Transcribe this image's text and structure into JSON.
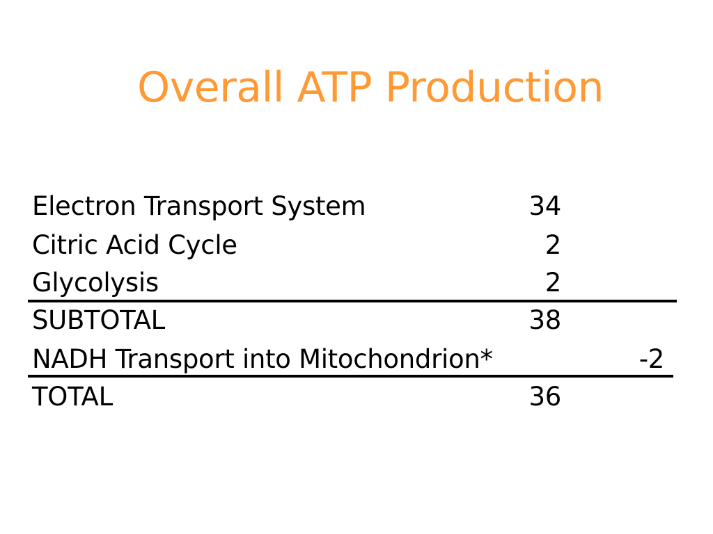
{
  "slide": {
    "title": "Overall ATP Production",
    "accent_color": "#ff9933",
    "rows": [
      {
        "label": "Electron Transport System",
        "value": "34"
      },
      {
        "label": "Citric Acid Cycle",
        "value": "2"
      },
      {
        "label": "Glycolysis",
        "value": "2"
      },
      {
        "label": "SUBTOTAL",
        "value": "38"
      },
      {
        "label": "NADH Transport into Mitochondrion*",
        "value": "-2"
      },
      {
        "label": "TOTAL",
        "value": "36"
      }
    ]
  }
}
